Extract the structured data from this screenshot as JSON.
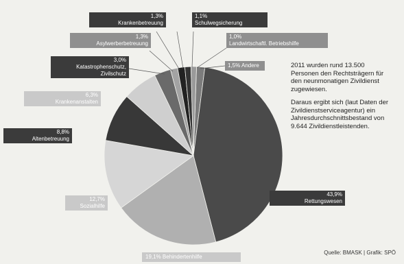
{
  "chart_data": {
    "type": "pie",
    "slices": [
      {
        "label": "Rettungswesen",
        "value": 43.9,
        "value_text": "43,9%",
        "color": "#4a4a4a"
      },
      {
        "label": "Behindertenhilfe",
        "value": 19.1,
        "value_text": "19,1%",
        "color": "#b0b0b0"
      },
      {
        "label": "Sozialhilfe",
        "value": 12.7,
        "value_text": "12,7%",
        "color": "#d6d6d6"
      },
      {
        "label": "Altenbetreuung",
        "value": 8.8,
        "value_text": "8,8%",
        "color": "#383838"
      },
      {
        "label": "Krankenanstalten",
        "value": 6.3,
        "value_text": "6,3%",
        "color": "#cfcfcf"
      },
      {
        "label": "Katastrophenschutz, Zivilschutz",
        "value": 3.0,
        "value_text": "3,0%",
        "color": "#6a6a6a"
      },
      {
        "label": "Asylwerberbetreuung",
        "value": 1.3,
        "value_text": "1,3%",
        "color": "#a3a3a3"
      },
      {
        "label": "Krankenbetreuung",
        "value": 1.3,
        "value_text": "1,3%",
        "color": "#222222"
      },
      {
        "label": "Schulwegsicherung",
        "value": 1.1,
        "value_text": "1,1%",
        "color": "#333333"
      },
      {
        "label": "Landwirtschaftl. Betriebshilfe",
        "value": 1.0,
        "value_text": "1,0%",
        "color": "#9a9a9a"
      },
      {
        "label": "Andere",
        "value": 1.5,
        "value_text": "1,5%",
        "color": "#7c7c7c"
      }
    ]
  },
  "labels": {
    "krankenbetreuung": {
      "pct": "1,3%",
      "name": "Krankenbetreuung"
    },
    "schulweg": {
      "pct": "1,1%",
      "name": "Schulwegsicherung"
    },
    "asyl": {
      "pct": "1,3%",
      "name": "Asylwerberbetreuung"
    },
    "landwirtschaft": {
      "pct": "1,0%",
      "name": "Landwirtschaftl. Betriebshilfe"
    },
    "katastrophe": {
      "pct": "3,0%",
      "name1": "Katastrophenschutz,",
      "name2": "Zivilschutz"
    },
    "andere": {
      "text": "1,5% Andere"
    },
    "krankenanstalten": {
      "pct": "6,3%",
      "name": "Krankenanstalten"
    },
    "altenbetreuung": {
      "pct": "8,8%",
      "name": "Altenbetreuung"
    },
    "sozialhilfe": {
      "pct": "12,7%",
      "name": "Sozialhilfe"
    },
    "rettungswesen": {
      "pct": "43,9%",
      "name": "Rettungswesen"
    },
    "behindertenhilfe": {
      "text": "19,1% Behindertenhilfe"
    }
  },
  "note": {
    "p1": "2011 wurden rund 13.500 Personen den Rechtsträgern für den neunmonatigen Zivildienst zugewiesen.",
    "p2": "Daraus ergibt sich (laut Daten der Zivildienstserviceagentur) ein Jahresdurchschnittsbestand von 9.644 Zivildienstleistenden."
  },
  "source": "Quelle: BMASK | Grafik: SPÖ"
}
